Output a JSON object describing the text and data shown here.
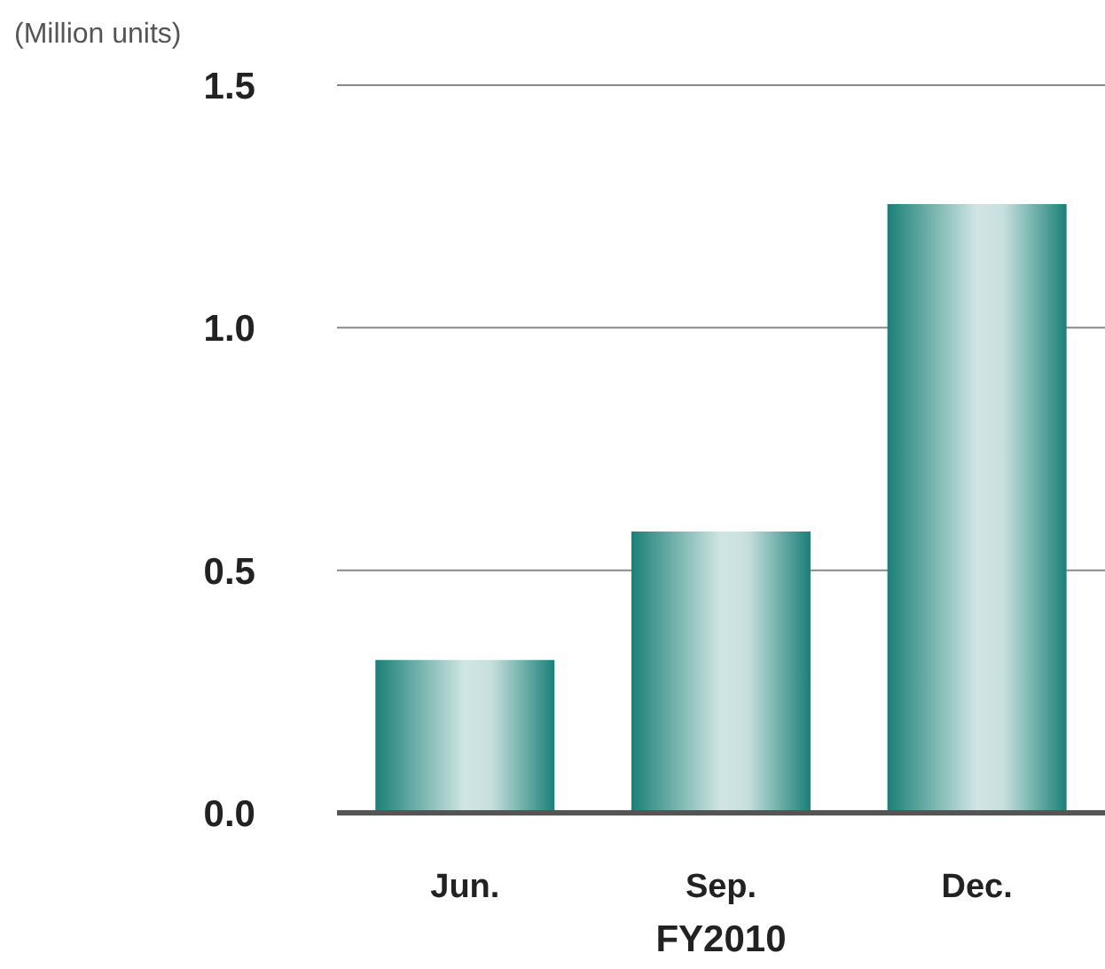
{
  "chart_data": {
    "type": "bar",
    "ylabel": "(Million units)",
    "xlabel": "FY2010",
    "categories": [
      "Jun.",
      "Sep.",
      "Dec."
    ],
    "values": [
      0.315,
      0.58,
      1.255
    ],
    "color": "#1a8078",
    "ylim": [
      0,
      1.5
    ],
    "yticks": [
      {
        "value": 0,
        "label": "0.0"
      },
      {
        "value": 0.5,
        "label": "0.5"
      },
      {
        "value": 1,
        "label": "1.0"
      },
      {
        "value": 1.5,
        "label": "1.5"
      }
    ],
    "grid": "y"
  }
}
